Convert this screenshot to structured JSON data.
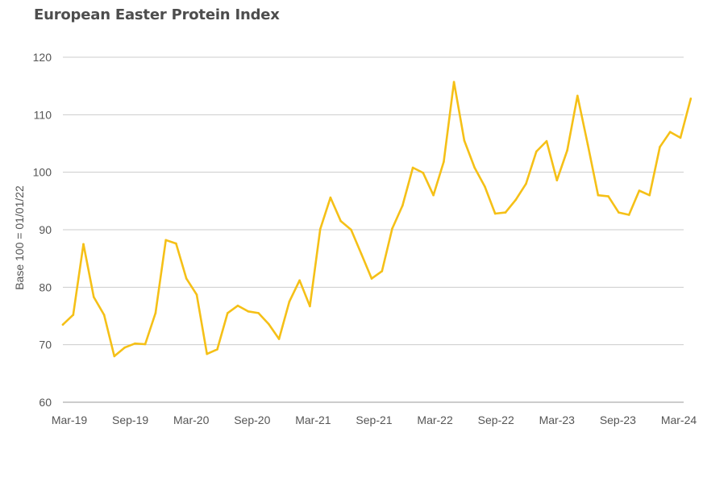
{
  "chart_data": {
    "type": "line",
    "title": "European Easter Protein Index",
    "xlabel": "",
    "ylabel": "Base 100 = 01/01/22",
    "ylim": [
      60,
      120
    ],
    "yticks": [
      "60",
      "70",
      "80",
      "90",
      "100",
      "110",
      "120"
    ],
    "xticks": [
      "Mar-19",
      "Sep-19",
      "Mar-20",
      "Sep-20",
      "Mar-21",
      "Sep-21",
      "Mar-22",
      "Sep-22",
      "Mar-23",
      "Sep-23",
      "Mar-24"
    ],
    "xlim": [
      "2019-03",
      "2024-03"
    ],
    "grid": true,
    "legend": "none",
    "color": "#f5c017",
    "series": [
      {
        "points": [
          [
            "2019-03",
            73.5
          ],
          [
            "2019-04",
            75.2
          ],
          [
            "2019-05",
            87.5
          ],
          [
            "2019-06",
            78.3
          ],
          [
            "2019-07",
            75.2
          ],
          [
            "2019-08",
            68.0
          ],
          [
            "2019-09",
            69.5
          ],
          [
            "2019-10",
            70.2
          ],
          [
            "2019-11",
            70.1
          ],
          [
            "2019-12",
            75.5
          ],
          [
            "2020-01",
            88.2
          ],
          [
            "2020-02",
            87.6
          ],
          [
            "2020-03",
            81.5
          ],
          [
            "2020-04",
            78.7
          ],
          [
            "2020-05",
            68.4
          ],
          [
            "2020-06",
            69.2
          ],
          [
            "2020-07",
            75.5
          ],
          [
            "2020-08",
            76.8
          ],
          [
            "2020-09",
            75.8
          ],
          [
            "2020-10",
            75.5
          ],
          [
            "2020-11",
            73.6
          ],
          [
            "2020-12",
            71.0
          ],
          [
            "2021-01",
            77.5
          ],
          [
            "2021-02",
            81.2
          ],
          [
            "2021-03",
            76.7
          ],
          [
            "2021-04",
            90.1
          ],
          [
            "2021-05",
            95.6
          ],
          [
            "2021-06",
            91.5
          ],
          [
            "2021-07",
            90.0
          ],
          [
            "2021-08",
            85.8
          ],
          [
            "2021-09",
            81.5
          ],
          [
            "2021-10",
            82.8
          ],
          [
            "2021-11",
            90.2
          ],
          [
            "2021-12",
            94.2
          ],
          [
            "2022-01",
            100.8
          ],
          [
            "2022-02",
            99.9
          ],
          [
            "2022-03",
            96.0
          ],
          [
            "2022-04",
            101.8
          ],
          [
            "2022-05",
            115.7
          ],
          [
            "2022-06",
            105.5
          ],
          [
            "2022-07",
            100.8
          ],
          [
            "2022-08",
            97.5
          ],
          [
            "2022-09",
            92.8
          ],
          [
            "2022-10",
            93.0
          ],
          [
            "2022-11",
            95.2
          ],
          [
            "2022-12",
            98.0
          ],
          [
            "2023-01",
            103.6
          ],
          [
            "2023-02",
            105.4
          ],
          [
            "2023-03",
            98.6
          ],
          [
            "2023-04",
            103.8
          ],
          [
            "2023-05",
            113.3
          ],
          [
            "2023-06",
            104.8
          ],
          [
            "2023-07",
            96.0
          ],
          [
            "2023-08",
            95.8
          ],
          [
            "2023-09",
            93.0
          ],
          [
            "2023-10",
            92.6
          ],
          [
            "2023-11",
            96.8
          ],
          [
            "2023-12",
            96.0
          ],
          [
            "2024-01",
            104.4
          ],
          [
            "2024-02",
            107.0
          ],
          [
            "2024-03",
            106.0
          ],
          [
            "2024-04",
            112.8
          ]
        ]
      }
    ]
  }
}
